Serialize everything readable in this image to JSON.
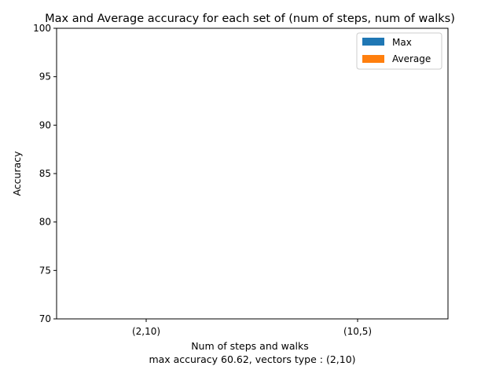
{
  "chart_data": {
    "type": "bar",
    "title": "Max and Average accuracy for each set of (num of steps, num of walks)",
    "xlabel": "Num of steps and walks",
    "xlabel_note": "max accuracy 60.62, vectors type : (2,10)",
    "ylabel": "Accuracy",
    "categories": [
      "(2,10)",
      "(10,5)"
    ],
    "ylim": [
      70,
      100
    ],
    "yticks": [
      70,
      75,
      80,
      85,
      90,
      95,
      100
    ],
    "series": [
      {
        "name": "Max",
        "color": "#1f77b4",
        "values": [
          null,
          null
        ]
      },
      {
        "name": "Average",
        "color": "#ff7f0e",
        "values": [
          null,
          null
        ]
      }
    ],
    "legend_position": "top-right",
    "grid": false
  }
}
